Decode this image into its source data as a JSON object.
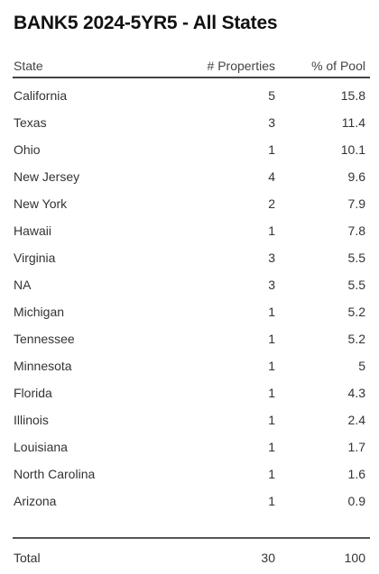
{
  "title": "BANK5 2024-5YR5 - All States",
  "columns": {
    "state": "State",
    "properties": "# Properties",
    "pool": "% of Pool"
  },
  "rows": [
    {
      "state": "California",
      "properties": "5",
      "pool": "15.8"
    },
    {
      "state": "Texas",
      "properties": "3",
      "pool": "11.4"
    },
    {
      "state": "Ohio",
      "properties": "1",
      "pool": "10.1"
    },
    {
      "state": "New Jersey",
      "properties": "4",
      "pool": "9.6"
    },
    {
      "state": "New York",
      "properties": "2",
      "pool": "7.9"
    },
    {
      "state": "Hawaii",
      "properties": "1",
      "pool": "7.8"
    },
    {
      "state": "Virginia",
      "properties": "3",
      "pool": "5.5"
    },
    {
      "state": "NA",
      "properties": "3",
      "pool": "5.5"
    },
    {
      "state": "Michigan",
      "properties": "1",
      "pool": "5.2"
    },
    {
      "state": "Tennessee",
      "properties": "1",
      "pool": "5.2"
    },
    {
      "state": "Minnesota",
      "properties": "1",
      "pool": "5"
    },
    {
      "state": "Florida",
      "properties": "1",
      "pool": "4.3"
    },
    {
      "state": "Illinois",
      "properties": "1",
      "pool": "2.4"
    },
    {
      "state": "Louisiana",
      "properties": "1",
      "pool": "1.7"
    },
    {
      "state": "North Carolina",
      "properties": "1",
      "pool": "1.6"
    },
    {
      "state": "Arizona",
      "properties": "1",
      "pool": "0.9"
    }
  ],
  "total": {
    "label": "Total",
    "properties": "30",
    "pool": "100"
  }
}
